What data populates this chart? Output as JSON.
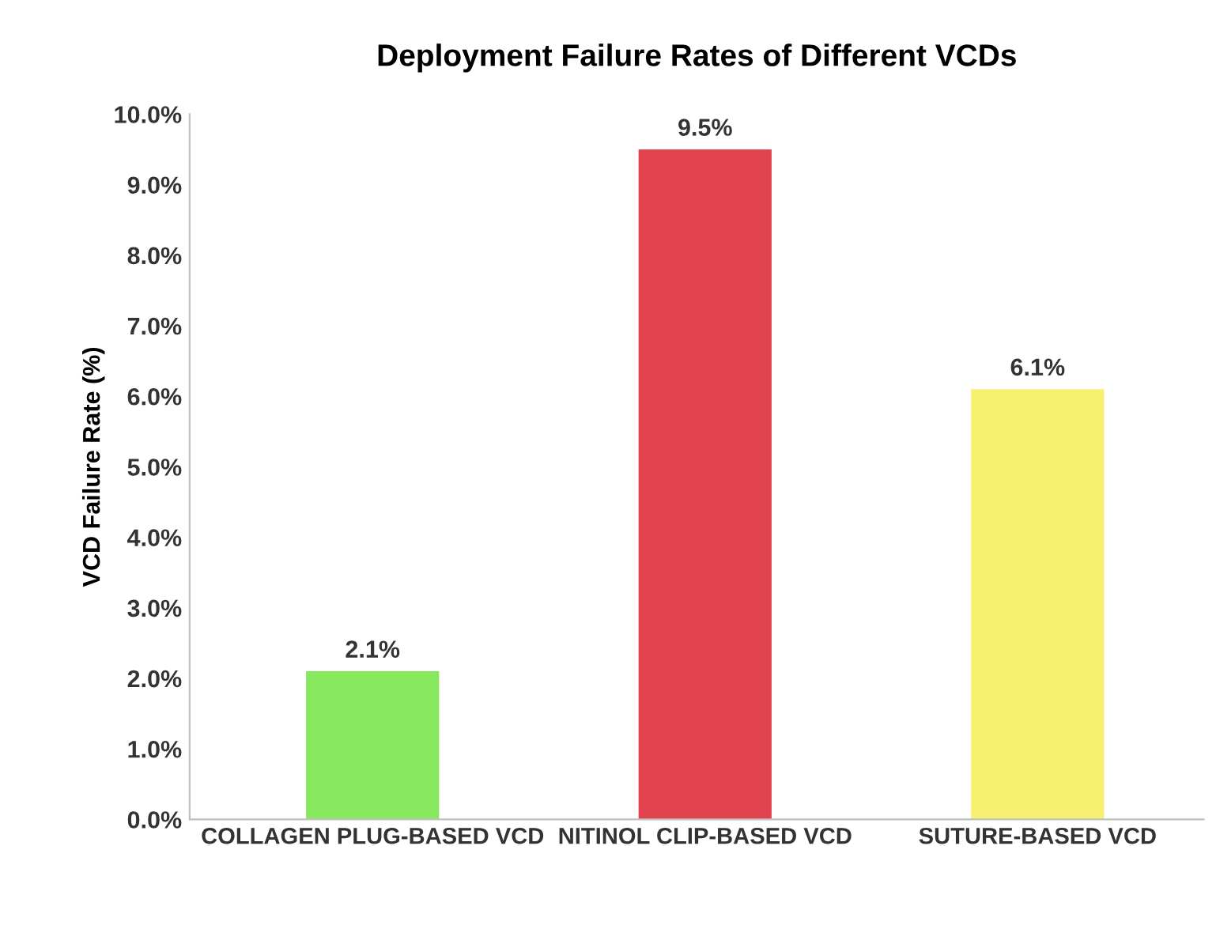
{
  "chart_data": {
    "type": "bar",
    "title": "Deployment Failure Rates of Different VCDs",
    "ylabel": "VCD Failure Rate (%)",
    "categories": [
      "COLLAGEN PLUG-BASED VCD",
      "NITINOL CLIP-BASED VCD",
      "SUTURE-BASED VCD"
    ],
    "values": [
      2.1,
      9.5,
      6.1
    ],
    "colors": [
      "#86e85c",
      "#e0434f",
      "#f8f070"
    ],
    "value_labels": [
      "2.1%",
      "9.5%",
      "6.1%"
    ],
    "ylim": [
      0,
      10
    ],
    "yticks": [
      {
        "value": 0,
        "label": "0.0%"
      },
      {
        "value": 1,
        "label": "1.0%"
      },
      {
        "value": 2,
        "label": "2.0%"
      },
      {
        "value": 3,
        "label": "3.0%"
      },
      {
        "value": 4,
        "label": "4.0%"
      },
      {
        "value": 5,
        "label": "5.0%"
      },
      {
        "value": 6,
        "label": "6.0%"
      },
      {
        "value": 7,
        "label": "7.0%"
      },
      {
        "value": 8,
        "label": "8.0%"
      },
      {
        "value": 9,
        "label": "9.0%"
      },
      {
        "value": 10,
        "label": "10.0%"
      }
    ],
    "grid": false,
    "legend": false
  }
}
